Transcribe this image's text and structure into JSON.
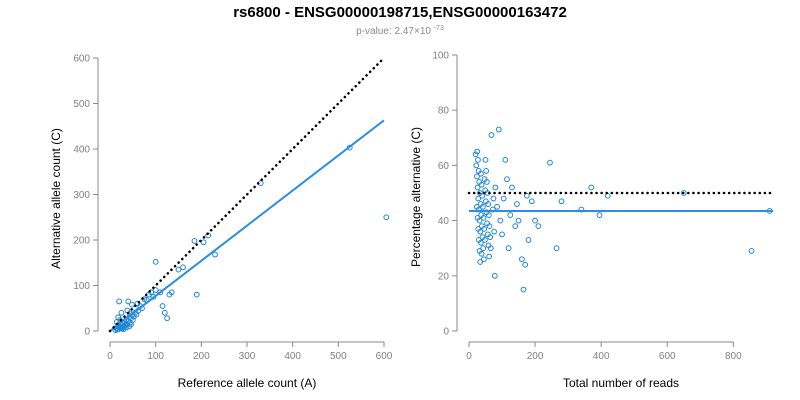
{
  "title": "rs6800 - ENSG00000198715,ENSG00000163472",
  "subtitle": {
    "prefix": "p-value: 2.47×10",
    "exponent": "-73"
  },
  "colors": {
    "points": "#1f86d6",
    "fit_line": "#2a8ee6",
    "reference_line": "#000000",
    "axis": "#8a8a8a",
    "tick_labels": "#808080"
  },
  "chart_data": [
    {
      "type": "scatter",
      "xlabel": "Reference allele count (A)",
      "ylabel": "Alternative allele count (C)",
      "xlim": [
        0,
        600
      ],
      "ylim": [
        0,
        600
      ],
      "x_ticks": [
        0,
        100,
        200,
        300,
        400,
        500,
        600
      ],
      "y_ticks": [
        0,
        100,
        200,
        300,
        400,
        500,
        600
      ],
      "grid": false,
      "reference_line": {
        "style": "dotted",
        "color": "#000000",
        "x": [
          0,
          600
        ],
        "y": [
          0,
          600
        ]
      },
      "fit_line": {
        "style": "solid",
        "color": "#2a8ee6",
        "x": [
          0,
          600
        ],
        "y": [
          0,
          463
        ]
      },
      "points": [
        [
          12,
          2
        ],
        [
          14,
          6
        ],
        [
          16,
          10
        ],
        [
          18,
          4
        ],
        [
          20,
          12
        ],
        [
          22,
          8
        ],
        [
          24,
          15
        ],
        [
          26,
          5
        ],
        [
          28,
          18
        ],
        [
          30,
          10
        ],
        [
          32,
          20
        ],
        [
          34,
          14
        ],
        [
          36,
          25
        ],
        [
          38,
          16
        ],
        [
          40,
          22
        ],
        [
          42,
          30
        ],
        [
          44,
          18
        ],
        [
          46,
          28
        ],
        [
          48,
          35
        ],
        [
          50,
          24
        ],
        [
          52,
          32
        ],
        [
          15,
          20
        ],
        [
          18,
          30
        ],
        [
          22,
          24
        ],
        [
          25,
          40
        ],
        [
          20,
          65
        ],
        [
          40,
          65
        ],
        [
          60,
          60
        ],
        [
          48,
          58
        ],
        [
          55,
          40
        ],
        [
          62,
          45
        ],
        [
          66,
          55
        ],
        [
          70,
          50
        ],
        [
          75,
          70
        ],
        [
          80,
          68
        ],
        [
          85,
          80
        ],
        [
          90,
          85
        ],
        [
          95,
          75
        ],
        [
          100,
          90
        ],
        [
          110,
          85
        ],
        [
          115,
          55
        ],
        [
          120,
          40
        ],
        [
          125,
          28
        ],
        [
          130,
          80
        ],
        [
          135,
          85
        ],
        [
          150,
          135
        ],
        [
          160,
          140
        ],
        [
          185,
          198
        ],
        [
          190,
          80
        ],
        [
          205,
          195
        ],
        [
          215,
          210
        ],
        [
          230,
          168
        ],
        [
          100,
          152
        ],
        [
          330,
          325
        ],
        [
          525,
          403
        ],
        [
          605,
          250
        ],
        [
          38,
          45
        ],
        [
          44,
          38
        ],
        [
          58,
          36
        ],
        [
          28,
          8
        ],
        [
          34,
          12
        ],
        [
          16,
          3
        ],
        [
          24,
          6
        ],
        [
          30,
          4
        ],
        [
          36,
          8
        ],
        [
          42,
          10
        ],
        [
          46,
          14
        ]
      ]
    },
    {
      "type": "scatter",
      "xlabel": "Total number of reads",
      "ylabel": "Percentage alternative (C)",
      "xlim": [
        0,
        920
      ],
      "ylim": [
        0,
        100
      ],
      "x_ticks": [
        0,
        200,
        400,
        600,
        800
      ],
      "y_ticks": [
        0,
        20,
        40,
        60,
        80,
        100
      ],
      "grid": false,
      "reference_line": {
        "style": "dotted",
        "color": "#000000",
        "x": [
          0,
          920
        ],
        "y": [
          50,
          50
        ]
      },
      "fit_line": {
        "style": "solid",
        "color": "#2a8ee6",
        "x": [
          0,
          920
        ],
        "y": [
          43.5,
          43.5
        ]
      },
      "points": [
        [
          20,
          64
        ],
        [
          22,
          60
        ],
        [
          24,
          56
        ],
        [
          26,
          52
        ],
        [
          28,
          48
        ],
        [
          30,
          44
        ],
        [
          32,
          40
        ],
        [
          34,
          36
        ],
        [
          36,
          32
        ],
        [
          38,
          28
        ],
        [
          25,
          65
        ],
        [
          27,
          62
        ],
        [
          29,
          58
        ],
        [
          31,
          54
        ],
        [
          33,
          50
        ],
        [
          35,
          46
        ],
        [
          37,
          42
        ],
        [
          39,
          38
        ],
        [
          41,
          34
        ],
        [
          43,
          30
        ],
        [
          45,
          26
        ],
        [
          47,
          55
        ],
        [
          49,
          51
        ],
        [
          51,
          47
        ],
        [
          53,
          43
        ],
        [
          55,
          39
        ],
        [
          57,
          35
        ],
        [
          59,
          31
        ],
        [
          61,
          27
        ],
        [
          24,
          45
        ],
        [
          26,
          41
        ],
        [
          28,
          37
        ],
        [
          30,
          33
        ],
        [
          32,
          29
        ],
        [
          34,
          25
        ],
        [
          36,
          57
        ],
        [
          38,
          53
        ],
        [
          40,
          49
        ],
        [
          42,
          45
        ],
        [
          44,
          41
        ],
        [
          46,
          37
        ],
        [
          48,
          33
        ],
        [
          50,
          62
        ],
        [
          52,
          58
        ],
        [
          54,
          54
        ],
        [
          56,
          50
        ],
        [
          58,
          46
        ],
        [
          60,
          42
        ],
        [
          62,
          38
        ],
        [
          64,
          34
        ],
        [
          66,
          30
        ],
        [
          68,
          71
        ],
        [
          72,
          44
        ],
        [
          74,
          48
        ],
        [
          76,
          36
        ],
        [
          78,
          20
        ],
        [
          80,
          52
        ],
        [
          85,
          45
        ],
        [
          90,
          73
        ],
        [
          95,
          40
        ],
        [
          100,
          35
        ],
        [
          105,
          48
        ],
        [
          110,
          62
        ],
        [
          115,
          55
        ],
        [
          120,
          30
        ],
        [
          125,
          42
        ],
        [
          130,
          52
        ],
        [
          140,
          38
        ],
        [
          145,
          46
        ],
        [
          150,
          40
        ],
        [
          160,
          26
        ],
        [
          165,
          15
        ],
        [
          170,
          24
        ],
        [
          175,
          49
        ],
        [
          180,
          33
        ],
        [
          190,
          47
        ],
        [
          200,
          40
        ],
        [
          210,
          38
        ],
        [
          245,
          61
        ],
        [
          265,
          30
        ],
        [
          280,
          47
        ],
        [
          340,
          44
        ],
        [
          370,
          52
        ],
        [
          395,
          42
        ],
        [
          420,
          49
        ],
        [
          650,
          50
        ],
        [
          855,
          29
        ],
        [
          910,
          43.5
        ]
      ]
    }
  ]
}
